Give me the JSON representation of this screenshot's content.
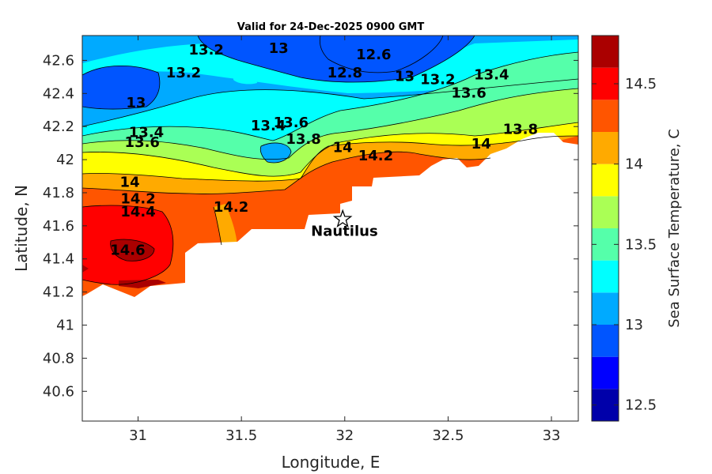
{
  "chart_data": {
    "type": "heatmap",
    "subtype": "filled-contour-map",
    "title": "Valid for 24-Dec-2025 0900 GMT",
    "xlabel": "Longitude, E",
    "ylabel": "Latitude, N",
    "xlim": [
      30.73,
      33.13
    ],
    "ylim": [
      40.42,
      42.75
    ],
    "xticks": [
      31,
      31.5,
      32,
      32.5,
      33
    ],
    "xtick_labels": [
      "31",
      "31.5",
      "32",
      "32.5",
      "33"
    ],
    "yticks": [
      40.6,
      40.8,
      41,
      41.2,
      41.4,
      41.6,
      41.8,
      42,
      42.2,
      42.4,
      42.6
    ],
    "ytick_labels": [
      "40.6",
      "40.8",
      "41",
      "41.2",
      "41.4",
      "41.6",
      "41.8",
      "42",
      "42.2",
      "42.4",
      "42.6"
    ],
    "colorbar": {
      "label": "Sea Surface Temperature, C",
      "range": [
        12.4,
        14.8
      ],
      "ticks": [
        12.5,
        13,
        13.5,
        14,
        14.5
      ],
      "tick_labels": [
        "12.5",
        "13",
        "13.5",
        "14",
        "14.5"
      ],
      "levels": [
        {
          "min": 12.4,
          "max": 12.6,
          "color": "#0000aa"
        },
        {
          "min": 12.6,
          "max": 12.8,
          "color": "#0000ff"
        },
        {
          "min": 12.8,
          "max": 13.0,
          "color": "#0055ff"
        },
        {
          "min": 13.0,
          "max": 13.2,
          "color": "#00aaff"
        },
        {
          "min": 13.2,
          "max": 13.4,
          "color": "#00ffff"
        },
        {
          "min": 13.4,
          "max": 13.6,
          "color": "#55ffaa"
        },
        {
          "min": 13.6,
          "max": 13.8,
          "color": "#aaff55"
        },
        {
          "min": 13.8,
          "max": 14.0,
          "color": "#ffff00"
        },
        {
          "min": 14.0,
          "max": 14.2,
          "color": "#ffaa00"
        },
        {
          "min": 14.2,
          "max": 14.4,
          "color": "#ff5500"
        },
        {
          "min": 14.4,
          "max": 14.6,
          "color": "#ff0000"
        },
        {
          "min": 14.6,
          "max": 14.8,
          "color": "#aa0000"
        }
      ]
    },
    "contour_labels": [
      {
        "text": "13.2",
        "lon": 31.33,
        "lat": 42.66
      },
      {
        "text": "13",
        "lon": 31.68,
        "lat": 42.67
      },
      {
        "text": "12.6",
        "lon": 32.14,
        "lat": 42.63
      },
      {
        "text": "13.2",
        "lon": 31.22,
        "lat": 42.52
      },
      {
        "text": "12.8",
        "lon": 32.0,
        "lat": 42.52
      },
      {
        "text": "13",
        "lon": 32.29,
        "lat": 42.5
      },
      {
        "text": "13.2",
        "lon": 32.45,
        "lat": 42.48
      },
      {
        "text": "13.4",
        "lon": 32.71,
        "lat": 42.51
      },
      {
        "text": "13.6",
        "lon": 32.6,
        "lat": 42.4
      },
      {
        "text": "13",
        "lon": 30.99,
        "lat": 42.34
      },
      {
        "text": "13.4",
        "lon": 31.63,
        "lat": 42.2
      },
      {
        "text": "13.6",
        "lon": 31.74,
        "lat": 42.22
      },
      {
        "text": "13.4",
        "lon": 31.04,
        "lat": 42.16
      },
      {
        "text": "13.6",
        "lon": 31.02,
        "lat": 42.1
      },
      {
        "text": "13.8",
        "lon": 31.8,
        "lat": 42.12
      },
      {
        "text": "14",
        "lon": 31.99,
        "lat": 42.07
      },
      {
        "text": "14.2",
        "lon": 32.15,
        "lat": 42.02
      },
      {
        "text": "13.8",
        "lon": 32.85,
        "lat": 42.18
      },
      {
        "text": "14",
        "lon": 32.66,
        "lat": 42.09
      },
      {
        "text": "14",
        "lon": 30.96,
        "lat": 41.86
      },
      {
        "text": "14.2",
        "lon": 31.0,
        "lat": 41.76
      },
      {
        "text": "14.2",
        "lon": 31.45,
        "lat": 41.71
      },
      {
        "text": "14.4",
        "lon": 31.0,
        "lat": 41.68
      },
      {
        "text": "14.6",
        "lon": 30.95,
        "lat": 41.45
      }
    ],
    "annotations": [
      {
        "text": "Nautilus",
        "marker": "star",
        "lon": 31.99,
        "lat": 41.64
      }
    ]
  }
}
